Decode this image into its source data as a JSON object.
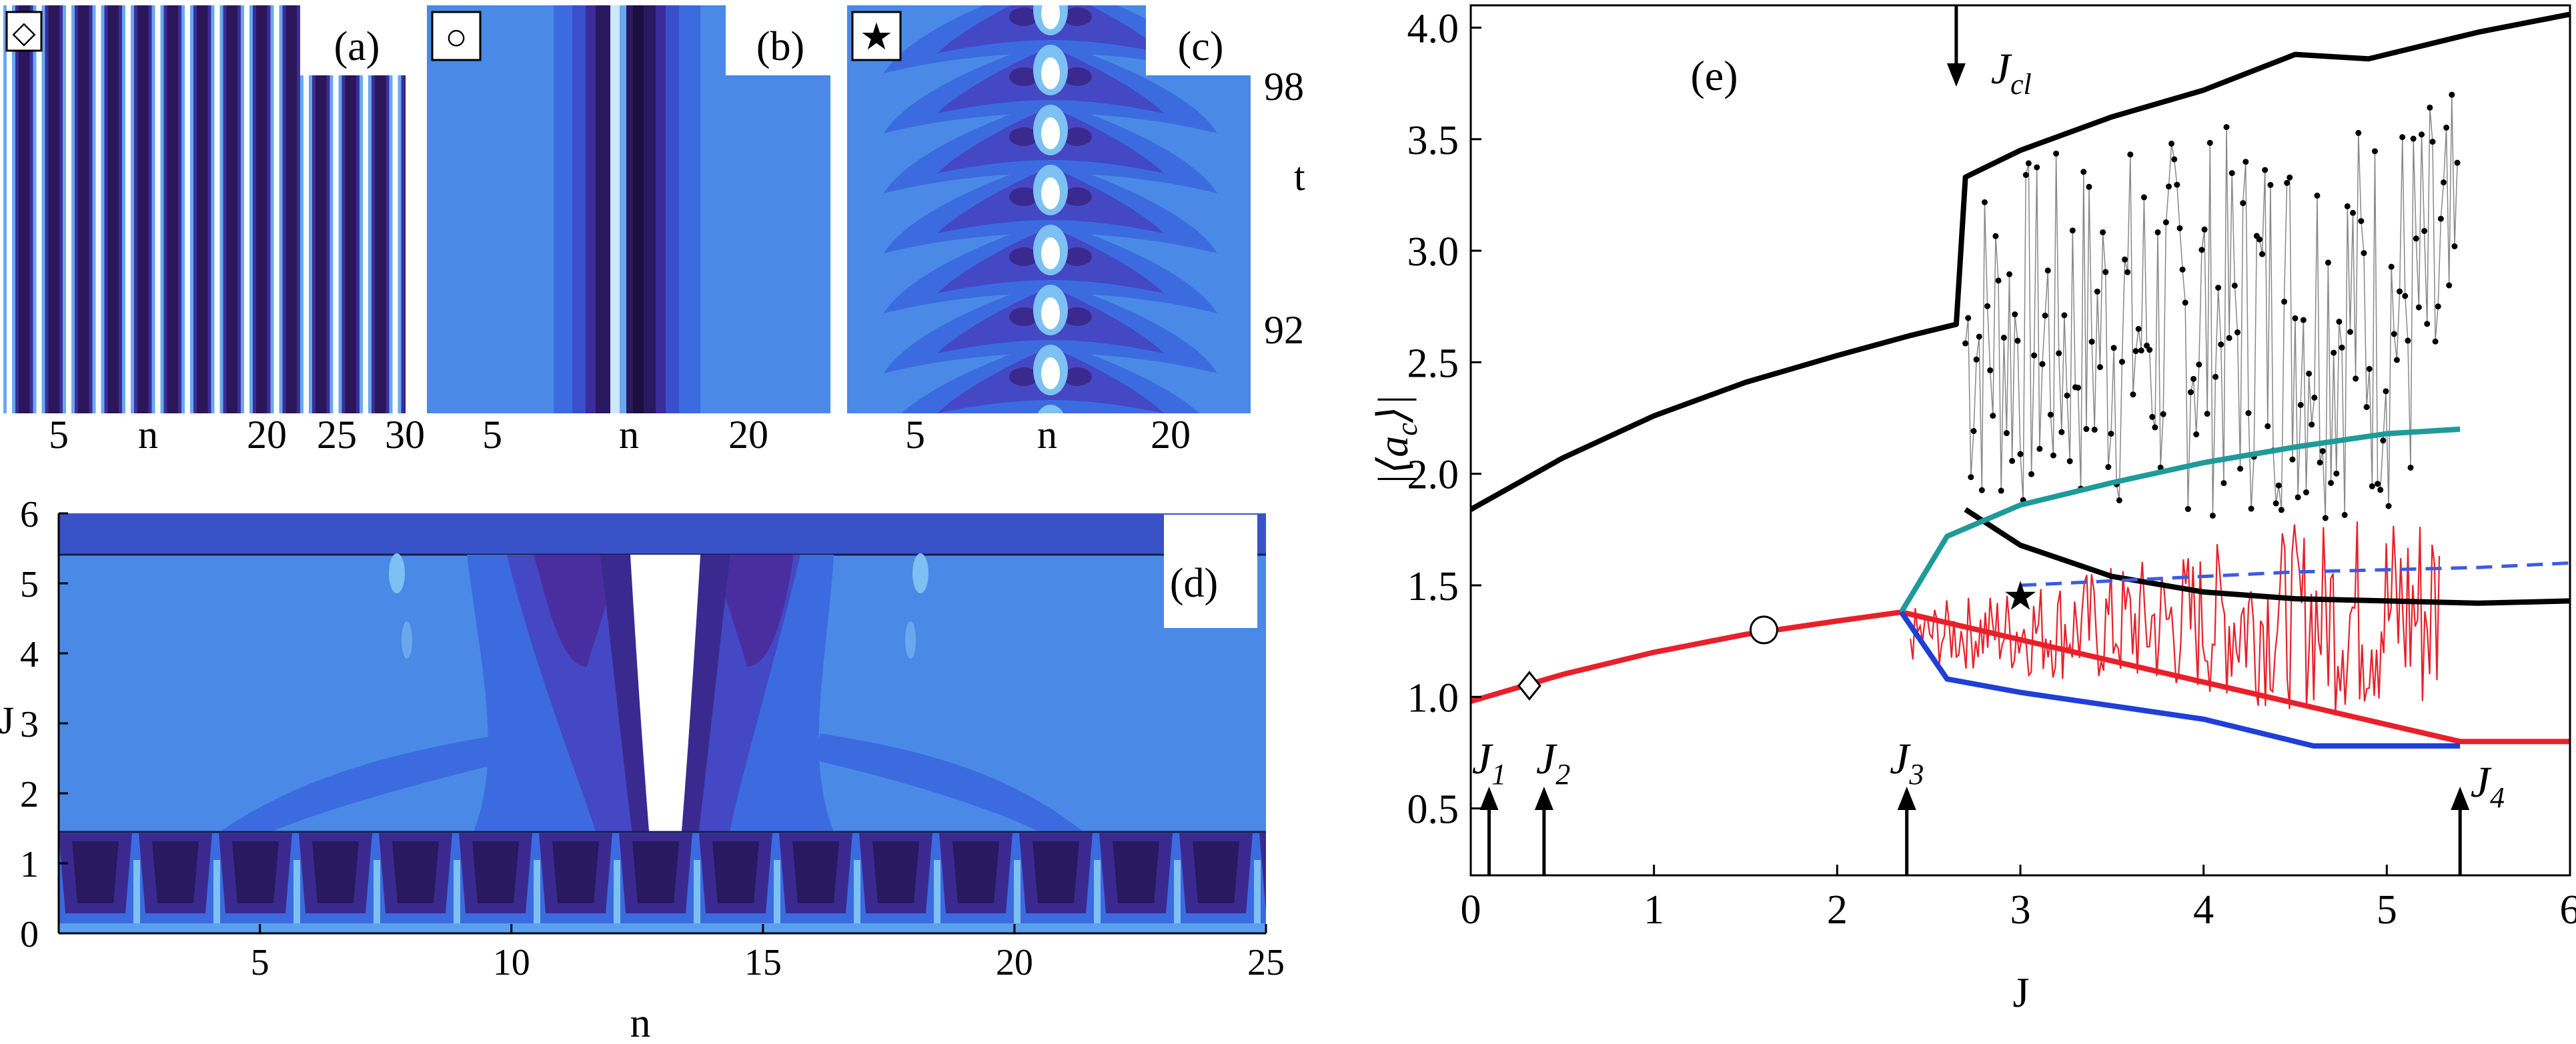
{
  "panels": {
    "a": {
      "label": "(a)",
      "marker": "◇",
      "xticks": [
        "5",
        "n",
        "20",
        "25",
        "30"
      ]
    },
    "b": {
      "label": "(b)",
      "marker": "○",
      "xticks": [
        "5",
        "n",
        "20"
      ]
    },
    "c": {
      "label": "(c)",
      "marker": "★",
      "xticks": [
        "5",
        "n",
        "20"
      ],
      "yticks": [
        "98",
        "t",
        "92"
      ]
    },
    "d": {
      "label": "(d)",
      "xlabel": "n",
      "ylabel": "J",
      "xticks": [
        "5",
        "10",
        "15",
        "20",
        "25"
      ],
      "yticks": [
        "0",
        "1",
        "2",
        "3",
        "4",
        "5",
        "6"
      ]
    },
    "e": {
      "label": "(e)",
      "xlabel": "J",
      "ylabel": "|⟨a",
      "ylabel_sub": "c",
      "ylabel_end": "⟩|",
      "xticks": [
        "0",
        "1",
        "2",
        "3",
        "4",
        "5",
        "6"
      ],
      "yticks": [
        "0.5",
        "1.0",
        "1.5",
        "2.0",
        "2.5",
        "3.0",
        "3.5",
        "4.0"
      ],
      "annotations": [
        {
          "main": "J",
          "sub": "1"
        },
        {
          "main": "J",
          "sub": "2"
        },
        {
          "main": "J",
          "sub": "3"
        },
        {
          "main": "J",
          "sub": "4"
        },
        {
          "main": "J",
          "sub": "cl"
        }
      ],
      "markers": {
        "diamond": "◇",
        "circle": "○",
        "star": "★"
      }
    }
  },
  "chart_data": {
    "type": "line",
    "xlabel": "J",
    "ylabel": "|⟨a_c⟩|",
    "xlim": [
      0,
      6
    ],
    "ylim": [
      0.2,
      4.1
    ],
    "grid": false,
    "series": [
      {
        "color": "#000000",
        "x": [
          0,
          0.5,
          1.0,
          1.5,
          2.0,
          2.4,
          2.65,
          2.7,
          3.0,
          3.5,
          4.0,
          4.5,
          4.9,
          5.2,
          5.5,
          6.0
        ],
        "y": [
          1.84,
          2.07,
          2.26,
          2.41,
          2.53,
          2.62,
          2.67,
          3.33,
          3.45,
          3.6,
          3.72,
          3.88,
          3.86,
          3.92,
          3.98,
          4.06
        ]
      },
      {
        "color": "#000000",
        "x": [
          2.7,
          3.0,
          3.5,
          4.0,
          4.5,
          5.0,
          5.5,
          6.0
        ],
        "y": [
          1.84,
          1.68,
          1.54,
          1.47,
          1.44,
          1.43,
          1.42,
          1.43
        ]
      },
      {
        "color": "#e8202a",
        "x": [
          0,
          0.5,
          1.0,
          1.5,
          2.0,
          2.35,
          5.4,
          6.0
        ],
        "y": [
          0.98,
          1.1,
          1.2,
          1.28,
          1.34,
          1.38,
          0.8,
          0.8
        ]
      },
      {
        "color": "#1f9a9a",
        "x": [
          2.35,
          2.6,
          3.0,
          3.5,
          4.0,
          4.5,
          5.0,
          5.4
        ],
        "y": [
          1.38,
          1.72,
          1.86,
          1.96,
          2.05,
          2.12,
          2.18,
          2.2
        ]
      },
      {
        "color": "#1f3fd8",
        "x": [
          2.35,
          2.6,
          3.0,
          3.5,
          4.0,
          4.5,
          4.6,
          5.4
        ],
        "y": [
          1.38,
          1.08,
          1.02,
          0.96,
          0.9,
          0.8,
          0.78,
          0.78
        ]
      },
      {
        "color": "#3b5be0",
        "x": [
          3.0,
          3.5,
          4.0,
          4.5,
          5.0,
          5.5,
          6.0
        ],
        "y": [
          1.5,
          1.52,
          1.54,
          1.56,
          1.57,
          1.58,
          1.6
        ]
      }
    ],
    "points": [
      {
        "shape": "diamond",
        "x": 0.32,
        "y": 1.05
      },
      {
        "shape": "circle",
        "x": 1.6,
        "y": 1.3
      },
      {
        "shape": "star",
        "x": 3.0,
        "y": 1.45
      }
    ],
    "arrows": [
      {
        "label": "J1",
        "x": 0.1
      },
      {
        "label": "J2",
        "x": 0.4
      },
      {
        "label": "J3",
        "x": 2.38
      },
      {
        "label": "J4",
        "x": 5.4
      },
      {
        "label": "Jcl",
        "x": 2.65
      }
    ]
  }
}
